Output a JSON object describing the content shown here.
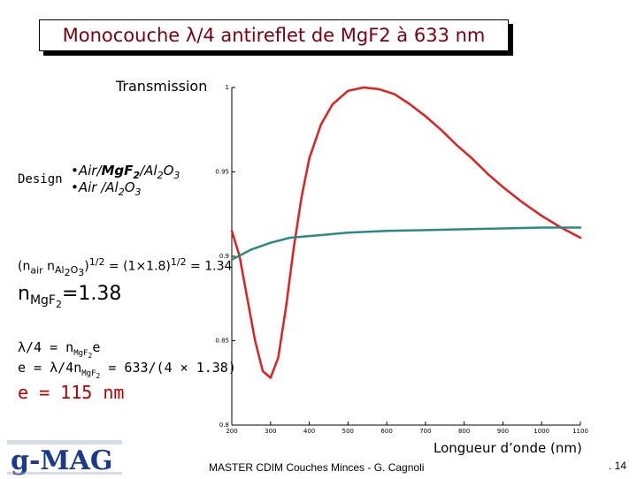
{
  "title": "Monocouche λ/4 antireflet de MgF2 à 633 nm",
  "transmission_label": "Transmission",
  "design_label": "Design",
  "legend": {
    "air_mgf2_prefix": "•Air/",
    "air_mgf2_bold": "MgF",
    "air_mgf2_bold_sub": "2",
    "air_mgf2_suffix": "/Al",
    "air_mgf2_sub2": "2",
    "air_mgf2_end": "O",
    "air_mgf2_sub3": "3",
    "air_al2o3_prefix": "•Air /Al",
    "air_al2o3_sub": "2",
    "air_al2o3_mid": "O",
    "air_al2o3_sub2": "3"
  },
  "formula1": {
    "open": "(n",
    "sub_air": "air",
    "n": " n",
    "sub_al": "Al",
    "sub_al2": "2",
    "sub_o": "O",
    "sub_o3": "3",
    "close": ")",
    "sup1": "1/2",
    "eq": " = (1×1.8)",
    "sup2": "1/2",
    "result": " = 1.34"
  },
  "formula2": {
    "n": "n",
    "sub": "MgF",
    "sub2": "2",
    "value": "=1.38"
  },
  "formula3": {
    "lhs": "λ/4 = n",
    "sub": "MgF",
    "sub2": "2",
    "rhs": "e"
  },
  "formula4": {
    "lhs": "e = λ/4n",
    "sub": "MgF",
    "sub2": "2",
    "rhs": " = 633/(4 × 1.38)"
  },
  "formula5": "e = 115 nm",
  "xaxis_label": "Longueur d’onde (nm)",
  "footer": "MASTER CDIM Couches Minces -  G. Cagnoli",
  "page_number": ". 14",
  "logo_text": "g-MAG",
  "colors": {
    "title": "#7a0010",
    "red_curve": "#e02020",
    "teal_curve": "#2a8a80",
    "formula_red": "#b00000",
    "logo": "#1a3a8a"
  },
  "chart_data": {
    "type": "line",
    "x_ticks": [
      200,
      300,
      400,
      500,
      600,
      700,
      800,
      900,
      1000,
      1100
    ],
    "y_ticks": [
      0.8,
      0.85,
      0.9,
      0.95,
      1
    ],
    "y_tick_labels": [
      "0.8",
      "0.85",
      "0.9",
      "0.95",
      "1"
    ],
    "xlim": [
      200,
      1100
    ],
    "ylim": [
      0.8,
      1.0
    ],
    "xlabel": "Longueur d’onde (nm)",
    "ylabel": "Transmission",
    "series": [
      {
        "color": "#e02020",
        "points": [
          [
            200,
            0.915
          ],
          [
            220,
            0.9
          ],
          [
            240,
            0.875
          ],
          [
            260,
            0.85
          ],
          [
            280,
            0.832
          ],
          [
            300,
            0.828
          ],
          [
            320,
            0.84
          ],
          [
            340,
            0.87
          ],
          [
            360,
            0.905
          ],
          [
            380,
            0.935
          ],
          [
            400,
            0.958
          ],
          [
            430,
            0.978
          ],
          [
            460,
            0.99
          ],
          [
            500,
            0.998
          ],
          [
            540,
            1.0
          ],
          [
            580,
            0.999
          ],
          [
            620,
            0.996
          ],
          [
            660,
            0.99
          ],
          [
            700,
            0.983
          ],
          [
            740,
            0.975
          ],
          [
            780,
            0.966
          ],
          [
            820,
            0.958
          ],
          [
            860,
            0.949
          ],
          [
            900,
            0.941
          ],
          [
            950,
            0.932
          ],
          [
            1000,
            0.924
          ],
          [
            1050,
            0.917
          ],
          [
            1100,
            0.911
          ]
        ]
      },
      {
        "color": "#2a8a80",
        "points": [
          [
            200,
            0.898
          ],
          [
            250,
            0.904
          ],
          [
            300,
            0.908
          ],
          [
            350,
            0.911
          ],
          [
            400,
            0.912
          ],
          [
            450,
            0.913
          ],
          [
            500,
            0.914
          ],
          [
            600,
            0.915
          ],
          [
            700,
            0.9155
          ],
          [
            800,
            0.916
          ],
          [
            900,
            0.9165
          ],
          [
            1000,
            0.917
          ],
          [
            1100,
            0.917
          ]
        ]
      }
    ]
  }
}
